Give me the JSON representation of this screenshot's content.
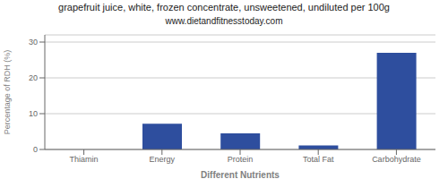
{
  "chart_data": {
    "type": "bar",
    "title": "grapefruit juice, white, frozen concentrate, unsweetened, undiluted per 100g",
    "subtitle": "www.dietandfitnesstoday.com",
    "categories": [
      "Thiamin",
      "Energy",
      "Protein",
      "Total Fat",
      "Carbohydrate"
    ],
    "values": [
      0.0,
      7.2,
      4.5,
      1.1,
      27.0
    ],
    "color": "#2e4e9e",
    "xlabel": "Different Nutrients",
    "ylabel": "Percentage of RDH (%)",
    "ylim": [
      0,
      32
    ],
    "yticks": [
      0,
      10,
      20,
      30
    ],
    "grid": true
  }
}
